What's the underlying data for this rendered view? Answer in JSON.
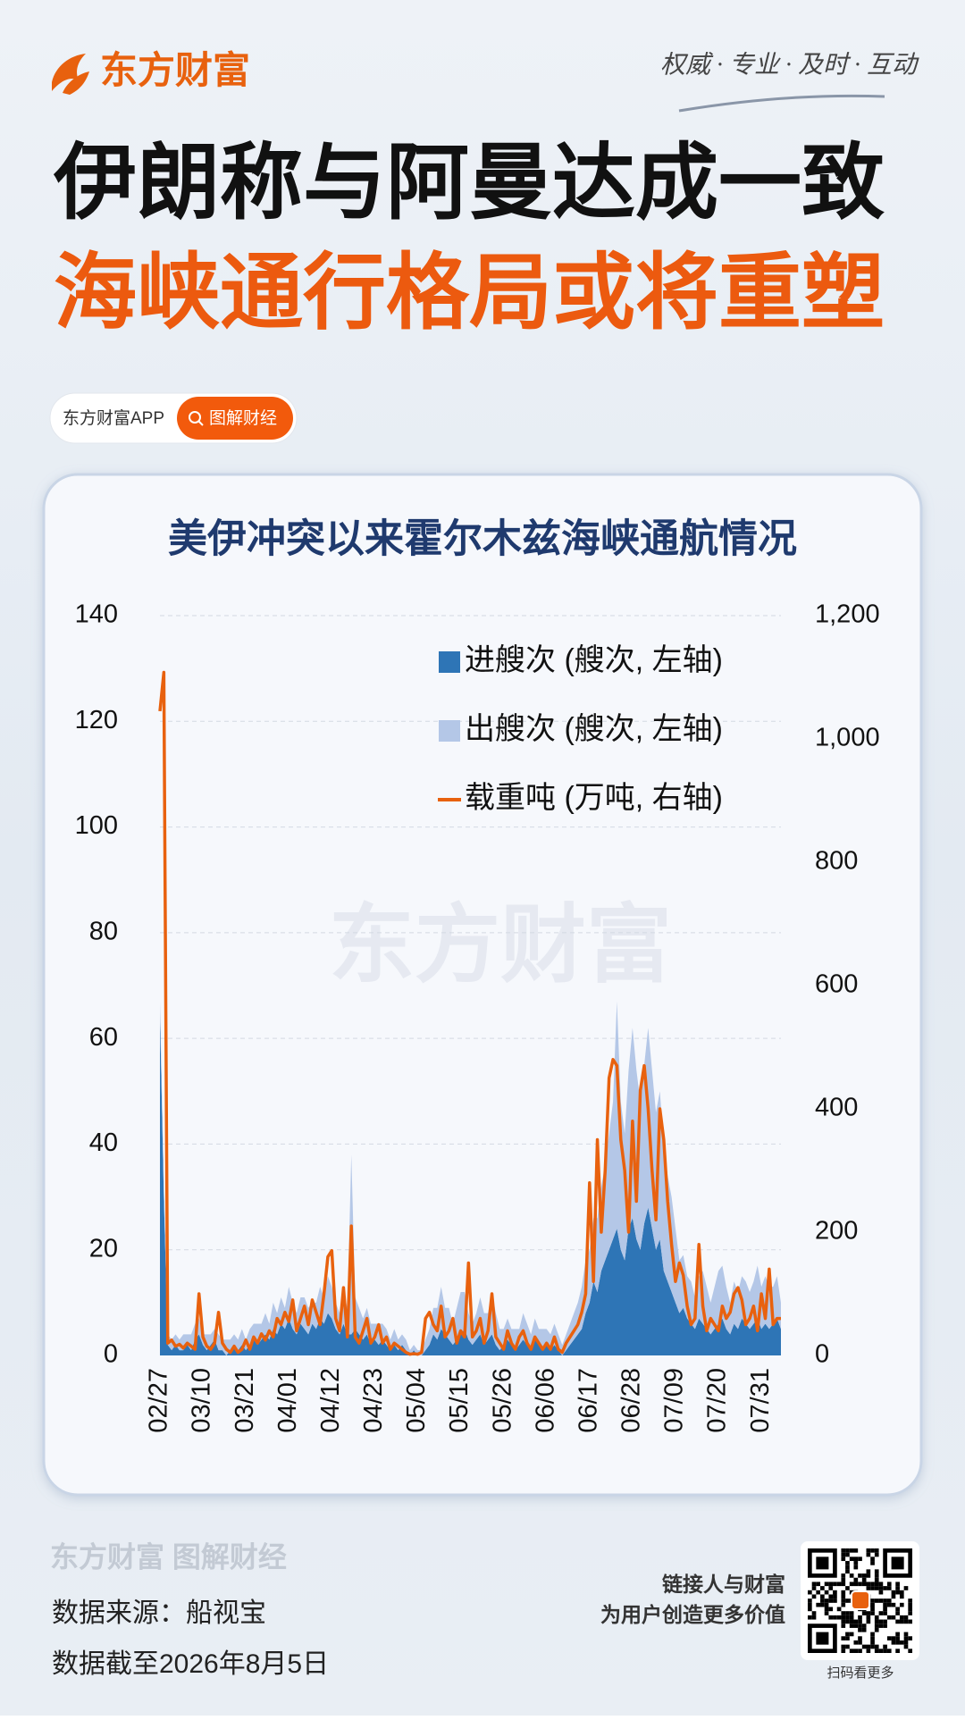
{
  "header": {
    "brand": "东方财富",
    "slogan": "权威 · 专业 · 及时 · 互动",
    "title_line1": "伊朗称与阿曼达成一致",
    "title_line2": "海峡通行格局或将重塑"
  },
  "tags": {
    "app": "东方财富APP",
    "button": "图解财经"
  },
  "chart_data": {
    "type": "area",
    "stacked": true,
    "grid": true,
    "legend": "upper right",
    "title": "美伊冲突以来霍尔木兹海峡通航情况",
    "watermark": "东方财富",
    "categories": [
      "02/27",
      null,
      null,
      null,
      null,
      null,
      null,
      null,
      null,
      null,
      null,
      "03/10",
      null,
      null,
      null,
      null,
      null,
      null,
      null,
      null,
      null,
      null,
      "03/21",
      null,
      null,
      null,
      null,
      null,
      null,
      null,
      null,
      null,
      null,
      "04/01",
      null,
      null,
      null,
      null,
      null,
      null,
      null,
      null,
      null,
      null,
      "04/12",
      null,
      null,
      null,
      null,
      null,
      null,
      null,
      null,
      null,
      null,
      "04/23",
      null,
      null,
      null,
      null,
      null,
      null,
      null,
      null,
      null,
      null,
      "05/04",
      null,
      null,
      null,
      null,
      null,
      null,
      null,
      null,
      null,
      null,
      "05/15",
      null,
      null,
      null,
      null,
      null,
      null,
      null,
      null,
      null,
      null,
      "05/26",
      null,
      null,
      null,
      null,
      null,
      null,
      null,
      null,
      null,
      null,
      "06/06",
      null,
      null,
      null,
      null,
      null,
      null,
      null,
      null,
      null,
      null,
      "06/17",
      null,
      null,
      null,
      null,
      null,
      null,
      null,
      null,
      null,
      null,
      "06/28",
      null,
      null,
      null,
      null,
      null,
      null,
      null,
      null,
      null,
      null,
      "07/09",
      null,
      null,
      null,
      null,
      null,
      null,
      null,
      null,
      null,
      null,
      "07/20",
      null,
      null,
      null,
      null,
      null,
      null,
      null,
      null,
      null,
      null,
      "07/31",
      null,
      null,
      null,
      null,
      null
    ],
    "ylim": [
      0,
      140
    ],
    "yticks": [
      0,
      20,
      40,
      60,
      80,
      100,
      120,
      140
    ],
    "y2lim": [
      0,
      1200
    ],
    "y2ticks": [
      0,
      200,
      400,
      600,
      800,
      {
        "value": 1000,
        "label": "1,000"
      },
      {
        "value": 1200,
        "label": "1,200"
      }
    ],
    "series": [
      {
        "name": "进艘次 (艘次, 左轴)",
        "color": "#2e75b6",
        "values": [
          65,
          30,
          2,
          1,
          2,
          1,
          1,
          2,
          1,
          3,
          4,
          2,
          1,
          2,
          3,
          1,
          1,
          0,
          1,
          2,
          1,
          2,
          1,
          2,
          3,
          2,
          3,
          4,
          3,
          5,
          4,
          6,
          5,
          7,
          5,
          4,
          6,
          5,
          4,
          6,
          5,
          7,
          6,
          8,
          7,
          5,
          4,
          6,
          4,
          4,
          5,
          4,
          3,
          4,
          2,
          3,
          2,
          3,
          2,
          1,
          2,
          1,
          2,
          1,
          0,
          1,
          0,
          0,
          1,
          2,
          4,
          3,
          5,
          4,
          3,
          2,
          3,
          4,
          5,
          3,
          2,
          3,
          4,
          2,
          3,
          4,
          2,
          1,
          2,
          3,
          2,
          1,
          2,
          3,
          2,
          1,
          3,
          2,
          1,
          2,
          1,
          2,
          1,
          0,
          1,
          2,
          3,
          4,
          5,
          8,
          10,
          14,
          12,
          16,
          18,
          20,
          22,
          24,
          20,
          18,
          24,
          26,
          22,
          20,
          25,
          28,
          24,
          20,
          22,
          16,
          14,
          12,
          10,
          8,
          9,
          7,
          6,
          5,
          7,
          6,
          5,
          4,
          5,
          6,
          7,
          5,
          4,
          6,
          5,
          7,
          6,
          5,
          6,
          7,
          5,
          6,
          5,
          6,
          7,
          5
        ]
      },
      {
        "name": "出艘次 (艘次, 左轴)",
        "color": "#b4c7e7",
        "values": [
          2,
          3,
          2,
          2,
          2,
          2,
          3,
          2,
          3,
          3,
          3,
          2,
          3,
          2,
          2,
          3,
          2,
          3,
          2,
          2,
          2,
          3,
          2,
          3,
          3,
          4,
          3,
          4,
          3,
          5,
          4,
          5,
          4,
          6,
          5,
          4,
          5,
          6,
          5,
          4,
          5,
          6,
          5,
          7,
          6,
          5,
          4,
          6,
          5,
          34,
          6,
          5,
          4,
          5,
          4,
          3,
          4,
          3,
          3,
          2,
          3,
          2,
          2,
          2,
          1,
          1,
          1,
          1,
          2,
          3,
          5,
          6,
          8,
          5,
          6,
          4,
          6,
          8,
          7,
          5,
          4,
          5,
          7,
          6,
          5,
          8,
          6,
          4,
          3,
          4,
          3,
          4,
          3,
          5,
          4,
          3,
          4,
          3,
          4,
          3,
          3,
          4,
          3,
          2,
          3,
          4,
          5,
          6,
          8,
          10,
          10,
          12,
          14,
          16,
          18,
          22,
          26,
          43,
          28,
          24,
          30,
          36,
          32,
          28,
          30,
          34,
          30,
          26,
          28,
          24,
          20,
          18,
          14,
          10,
          10,
          8,
          8,
          6,
          8,
          10,
          8,
          6,
          8,
          10,
          10,
          8,
          6,
          8,
          7,
          8,
          8,
          7,
          8,
          10,
          8,
          9,
          8,
          7,
          8,
          5
        ]
      },
      {
        "name": "载重吨 (万吨, 右轴)",
        "color": "#e8610e",
        "type": "line",
        "axis": "y2",
        "values": [
          1045,
          1108,
          20,
          25,
          15,
          18,
          12,
          20,
          15,
          10,
          100,
          30,
          15,
          10,
          20,
          70,
          20,
          10,
          5,
          15,
          5,
          10,
          25,
          10,
          30,
          20,
          35,
          25,
          40,
          30,
          60,
          50,
          70,
          55,
          90,
          40,
          60,
          80,
          50,
          90,
          70,
          50,
          100,
          160,
          170,
          60,
          40,
          110,
          30,
          210,
          30,
          20,
          40,
          60,
          20,
          30,
          50,
          20,
          30,
          10,
          20,
          15,
          10,
          5,
          2,
          3,
          2,
          5,
          60,
          70,
          50,
          40,
          80,
          30,
          40,
          60,
          20,
          40,
          30,
          150,
          30,
          40,
          60,
          20,
          40,
          100,
          30,
          20,
          10,
          40,
          20,
          10,
          30,
          40,
          20,
          10,
          30,
          20,
          10,
          20,
          10,
          30,
          10,
          5,
          20,
          30,
          40,
          50,
          70,
          100,
          280,
          120,
          350,
          200,
          300,
          450,
          480,
          470,
          350,
          300,
          200,
          380,
          250,
          430,
          470,
          400,
          300,
          220,
          400,
          350,
          250,
          180,
          120,
          150,
          130,
          80,
          50,
          60,
          180,
          80,
          40,
          60,
          50,
          40,
          80,
          60,
          70,
          100,
          110,
          90,
          50,
          60,
          80,
          40,
          100,
          60,
          140,
          50,
          60,
          60
        ]
      }
    ]
  },
  "footer": {
    "watermark": "东方财富 图解财经",
    "source": "数据来源：船视宝",
    "date_note": "数据截至2026年8月5日",
    "motto1": "链接人与财富",
    "motto2": "为用户创造更多价值",
    "qr_caption": "扫码看更多"
  }
}
